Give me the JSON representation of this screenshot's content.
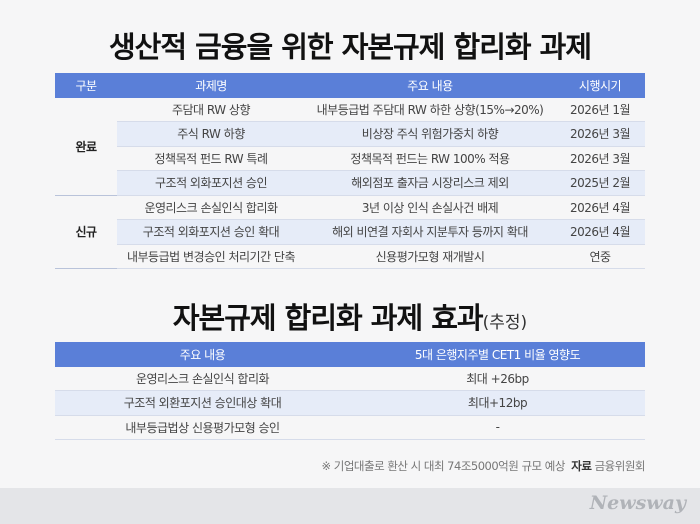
{
  "title": "생산적 금융을 위한 자본규제 합리화 과제",
  "table1": {
    "header": [
      "구분",
      "과제명",
      "주요 내용",
      "시행시기"
    ],
    "groups": [
      {
        "label": "완료",
        "rows": [
          [
            "주담대 RW 상향",
            "내부등급법 주담대 RW 하한 상향(15%→20%)",
            "2026년 1월"
          ],
          [
            "주식 RW 하향",
            "비상장 주식 위험가중치 하향",
            "2026년 3월"
          ],
          [
            "정책목적 펀드 RW 특례",
            "정책목적 펀드는 RW 100% 적용",
            "2026년 3월"
          ],
          [
            "구조적 외화포지션 승인",
            "해외점포 출자금 시장리스크 제외",
            "2025년 2월"
          ]
        ]
      },
      {
        "label": "신규",
        "rows": [
          [
            "운영리스크 손실인식 합리화",
            "3년 이상 인식 손실사건 배제",
            "2026년 4월"
          ],
          [
            "구조적 외화포지션 승인 확대",
            "해외 비연결 자회사 지분투자 등까지 확대",
            "2026년 4월"
          ],
          [
            "내부등급법 변경승인 처리기간 단축",
            "신용평가모형 재개발시",
            "연중"
          ]
        ]
      }
    ]
  },
  "title2": "자본규제 합리화 과제 효과",
  "title2_note": "(추정)",
  "table2": {
    "header": [
      "주요 내용",
      "5대 은행지주별 CET1 비율 영향도"
    ],
    "rows": [
      [
        "운영리스크 손실인식 합리화",
        "최대 +26bp"
      ],
      [
        "구조적 외환포지션 승인대상 확대",
        "최대+12bp"
      ],
      [
        "내부등급법상 신용평가모형 승인",
        "-"
      ]
    ]
  },
  "footnote": {
    "text": "※ 기업대출로 환산 시 대최 74조5000억원 규모 예상",
    "source_label": "자료",
    "source": "금융위원회"
  },
  "logo": "Newsway"
}
